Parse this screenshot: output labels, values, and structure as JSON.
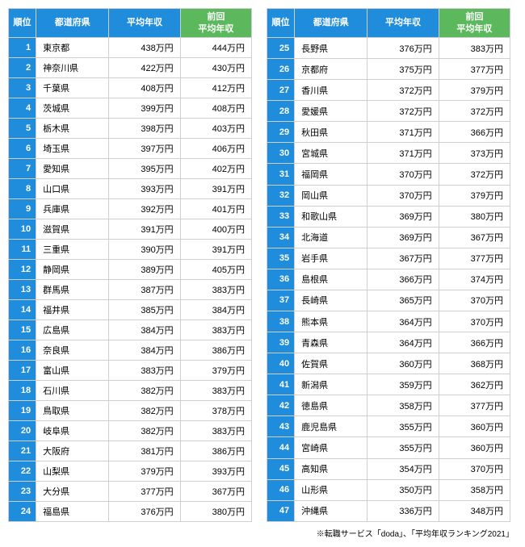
{
  "headers": {
    "rank": "順位",
    "pref": "都道府県",
    "avg": "平均年収",
    "prev": "前回\n平均年収"
  },
  "colors": {
    "blue": "#1f8ddb",
    "green": "#5cb85c",
    "border": "#cfcfcf",
    "text": "#000000",
    "header_text": "#ffffff",
    "background": "#ffffff"
  },
  "footnote": "※転職サービス「doda」、「平均年収ランキング2021」",
  "left": [
    {
      "rank": 1,
      "pref": "東京都",
      "avg": "438万円",
      "prev": "444万円"
    },
    {
      "rank": 2,
      "pref": "神奈川県",
      "avg": "422万円",
      "prev": "430万円"
    },
    {
      "rank": 3,
      "pref": "千葉県",
      "avg": "408万円",
      "prev": "412万円"
    },
    {
      "rank": 4,
      "pref": "茨城県",
      "avg": "399万円",
      "prev": "408万円"
    },
    {
      "rank": 5,
      "pref": "栃木県",
      "avg": "398万円",
      "prev": "403万円"
    },
    {
      "rank": 6,
      "pref": "埼玉県",
      "avg": "397万円",
      "prev": "406万円"
    },
    {
      "rank": 7,
      "pref": "愛知県",
      "avg": "395万円",
      "prev": "402万円"
    },
    {
      "rank": 8,
      "pref": "山口県",
      "avg": "393万円",
      "prev": "391万円"
    },
    {
      "rank": 9,
      "pref": "兵庫県",
      "avg": "392万円",
      "prev": "401万円"
    },
    {
      "rank": 10,
      "pref": "滋賀県",
      "avg": "391万円",
      "prev": "400万円"
    },
    {
      "rank": 11,
      "pref": "三重県",
      "avg": "390万円",
      "prev": "391万円"
    },
    {
      "rank": 12,
      "pref": "静岡県",
      "avg": "389万円",
      "prev": "405万円"
    },
    {
      "rank": 13,
      "pref": "群馬県",
      "avg": "387万円",
      "prev": "383万円"
    },
    {
      "rank": 14,
      "pref": "福井県",
      "avg": "385万円",
      "prev": "384万円"
    },
    {
      "rank": 15,
      "pref": "広島県",
      "avg": "384万円",
      "prev": "383万円"
    },
    {
      "rank": 16,
      "pref": "奈良県",
      "avg": "384万円",
      "prev": "386万円"
    },
    {
      "rank": 17,
      "pref": "富山県",
      "avg": "383万円",
      "prev": "379万円"
    },
    {
      "rank": 18,
      "pref": "石川県",
      "avg": "382万円",
      "prev": "383万円"
    },
    {
      "rank": 19,
      "pref": "鳥取県",
      "avg": "382万円",
      "prev": "378万円"
    },
    {
      "rank": 20,
      "pref": "岐阜県",
      "avg": "382万円",
      "prev": "383万円"
    },
    {
      "rank": 21,
      "pref": "大阪府",
      "avg": "381万円",
      "prev": "386万円"
    },
    {
      "rank": 22,
      "pref": "山梨県",
      "avg": "379万円",
      "prev": "393万円"
    },
    {
      "rank": 23,
      "pref": "大分県",
      "avg": "377万円",
      "prev": "367万円"
    },
    {
      "rank": 24,
      "pref": "福島県",
      "avg": "376万円",
      "prev": "380万円"
    }
  ],
  "right": [
    {
      "rank": 25,
      "pref": "長野県",
      "avg": "376万円",
      "prev": "383万円"
    },
    {
      "rank": 26,
      "pref": "京都府",
      "avg": "375万円",
      "prev": "377万円"
    },
    {
      "rank": 27,
      "pref": "香川県",
      "avg": "372万円",
      "prev": "379万円"
    },
    {
      "rank": 28,
      "pref": "愛媛県",
      "avg": "372万円",
      "prev": "372万円"
    },
    {
      "rank": 29,
      "pref": "秋田県",
      "avg": "371万円",
      "prev": "366万円"
    },
    {
      "rank": 30,
      "pref": "宮城県",
      "avg": "371万円",
      "prev": "373万円"
    },
    {
      "rank": 31,
      "pref": "福岡県",
      "avg": "370万円",
      "prev": "372万円"
    },
    {
      "rank": 32,
      "pref": "岡山県",
      "avg": "370万円",
      "prev": "379万円"
    },
    {
      "rank": 33,
      "pref": "和歌山県",
      "avg": "369万円",
      "prev": "380万円"
    },
    {
      "rank": 34,
      "pref": "北海道",
      "avg": "369万円",
      "prev": "367万円"
    },
    {
      "rank": 35,
      "pref": "岩手県",
      "avg": "367万円",
      "prev": "377万円"
    },
    {
      "rank": 36,
      "pref": "島根県",
      "avg": "366万円",
      "prev": "374万円"
    },
    {
      "rank": 37,
      "pref": "長崎県",
      "avg": "365万円",
      "prev": "370万円"
    },
    {
      "rank": 38,
      "pref": "熊本県",
      "avg": "364万円",
      "prev": "370万円"
    },
    {
      "rank": 39,
      "pref": "青森県",
      "avg": "364万円",
      "prev": "366万円"
    },
    {
      "rank": 40,
      "pref": "佐賀県",
      "avg": "360万円",
      "prev": "368万円"
    },
    {
      "rank": 41,
      "pref": "新潟県",
      "avg": "359万円",
      "prev": "362万円"
    },
    {
      "rank": 42,
      "pref": "徳島県",
      "avg": "358万円",
      "prev": "377万円"
    },
    {
      "rank": 43,
      "pref": "鹿児島県",
      "avg": "355万円",
      "prev": "360万円"
    },
    {
      "rank": 44,
      "pref": "宮崎県",
      "avg": "355万円",
      "prev": "360万円"
    },
    {
      "rank": 45,
      "pref": "高知県",
      "avg": "354万円",
      "prev": "370万円"
    },
    {
      "rank": 46,
      "pref": "山形県",
      "avg": "350万円",
      "prev": "358万円"
    },
    {
      "rank": 47,
      "pref": "沖縄県",
      "avg": "336万円",
      "prev": "348万円"
    }
  ]
}
